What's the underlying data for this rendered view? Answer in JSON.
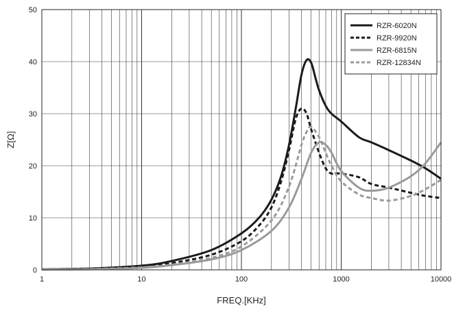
{
  "chart_data": {
    "type": "line",
    "title": "",
    "xlabel": "FREQ.[KHz]",
    "ylabel": "Z[Ω]",
    "x_scale": "log",
    "xlim": [
      1,
      10000
    ],
    "ylim": [
      0,
      50
    ],
    "x_ticks": [
      1,
      10,
      100,
      1000,
      10000
    ],
    "x_tick_labels": [
      "1",
      "10",
      "100",
      "1000",
      "10000"
    ],
    "y_ticks": [
      0,
      10,
      20,
      30,
      40,
      50
    ],
    "y_tick_labels": [
      "0",
      "10",
      "20",
      "30",
      "40",
      "50"
    ],
    "grid": true,
    "legend_position": "top-right",
    "series": [
      {
        "name": "RZR-6020N",
        "color": "#1a1a1a",
        "dash": "solid",
        "x": [
          1,
          3,
          10,
          20,
          50,
          100,
          150,
          200,
          250,
          300,
          350,
          400,
          450,
          500,
          550,
          600,
          700,
          800,
          1000,
          1500,
          2000,
          3000,
          5000,
          7000,
          10000
        ],
        "y": [
          0.1,
          0.25,
          0.8,
          1.7,
          3.8,
          7.0,
          10.0,
          13.5,
          18.0,
          24.0,
          31.0,
          37.5,
          40.3,
          39.8,
          37.0,
          34.5,
          31.5,
          30.0,
          28.5,
          25.5,
          24.5,
          23.0,
          21.0,
          19.5,
          17.5
        ]
      },
      {
        "name": "RZR-9920N",
        "color": "#1a1a1a",
        "dash": "dashed",
        "x": [
          1,
          3,
          10,
          20,
          50,
          100,
          150,
          200,
          250,
          300,
          350,
          400,
          450,
          500,
          600,
          700,
          800,
          1000,
          1500,
          2000,
          3000,
          5000,
          7000,
          10000
        ],
        "y": [
          0.08,
          0.2,
          0.6,
          1.3,
          2.9,
          5.5,
          8.5,
          12.0,
          17.0,
          23.0,
          29.0,
          31.0,
          30.0,
          27.0,
          22.5,
          19.5,
          18.5,
          18.5,
          17.8,
          16.5,
          15.8,
          14.8,
          14.2,
          13.8
        ]
      },
      {
        "name": "RZR-6815N",
        "color": "#9a9a9a",
        "dash": "solid",
        "x": [
          1,
          3,
          10,
          20,
          50,
          100,
          200,
          300,
          400,
          500,
          600,
          700,
          800,
          1000,
          1500,
          2000,
          3000,
          5000,
          7000,
          10000
        ],
        "y": [
          0.05,
          0.12,
          0.4,
          0.9,
          2.0,
          3.8,
          7.5,
          12.0,
          17.5,
          22.5,
          24.5,
          24.0,
          22.5,
          19.0,
          15.8,
          15.2,
          15.8,
          18.0,
          20.5,
          24.5
        ]
      },
      {
        "name": "RZR-12834N",
        "color": "#9a9a9a",
        "dash": "dashed",
        "x": [
          1,
          3,
          10,
          20,
          50,
          100,
          200,
          300,
          400,
          450,
          500,
          600,
          700,
          800,
          1000,
          1500,
          2000,
          3000,
          5000,
          7000,
          10000
        ],
        "y": [
          0.06,
          0.15,
          0.5,
          1.0,
          2.3,
          4.5,
          9.5,
          16.0,
          24.0,
          26.5,
          27.5,
          25.5,
          22.5,
          20.0,
          17.0,
          14.5,
          13.8,
          13.3,
          14.2,
          15.5,
          17.3
        ]
      }
    ]
  }
}
